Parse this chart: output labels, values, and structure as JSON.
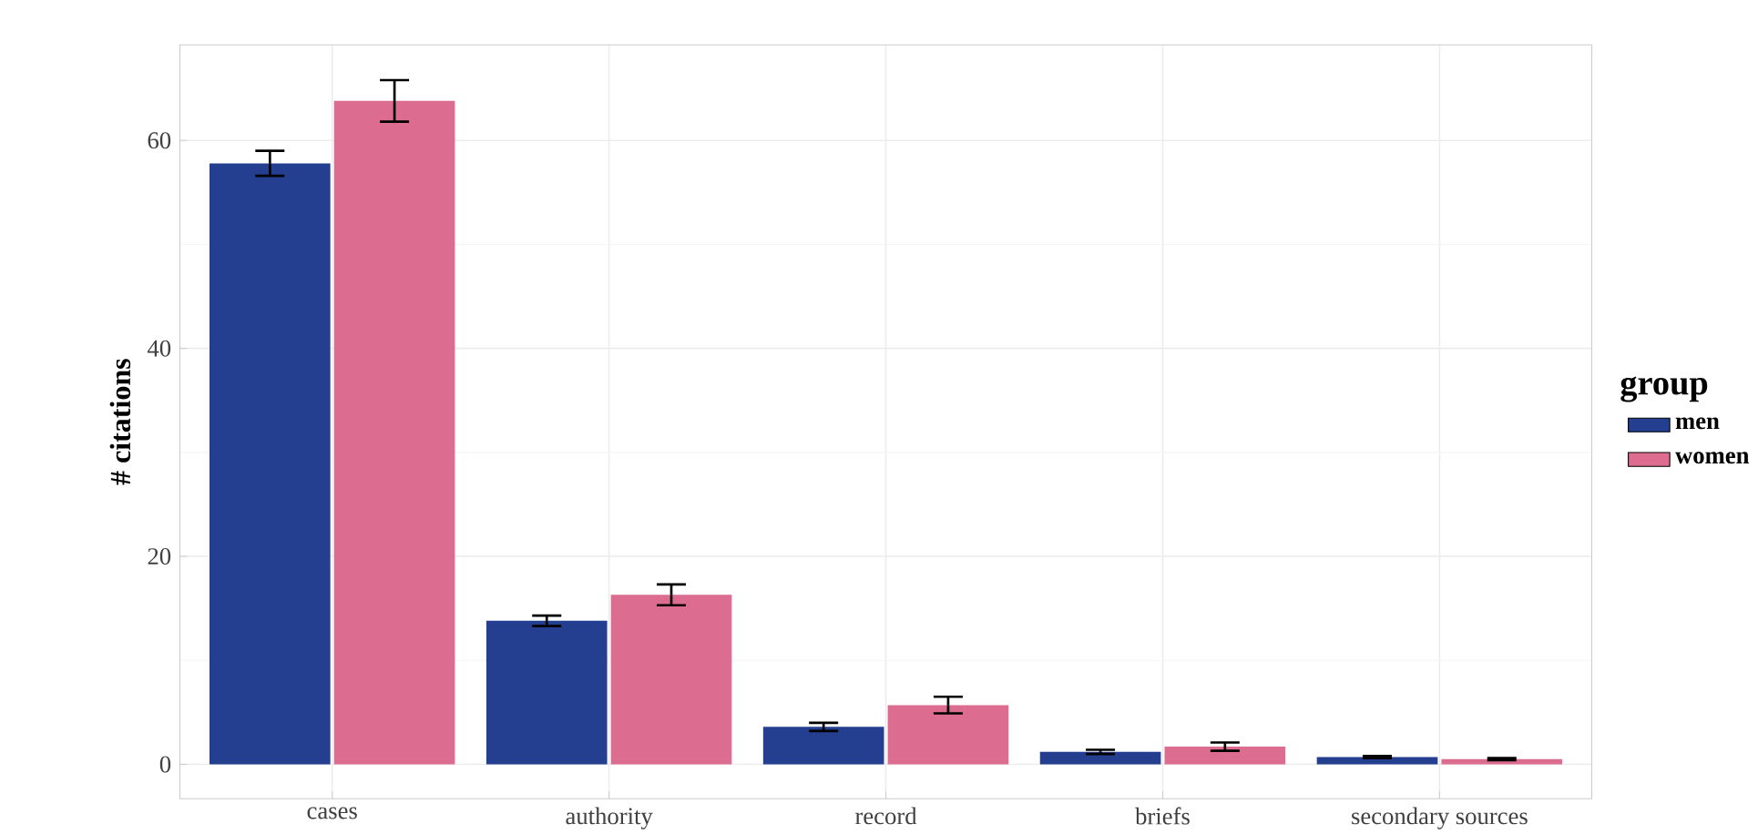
{
  "chart_data": {
    "type": "bar",
    "ylabel": "# citations",
    "legend_title": "group",
    "categories": [
      "cases",
      "authority",
      "record",
      "briefs",
      "secondary sources"
    ],
    "series": [
      {
        "name": "men",
        "color": "#243f8f",
        "values": [
          57.8,
          13.8,
          3.6,
          1.2,
          0.7
        ],
        "errors": [
          1.2,
          0.5,
          0.4,
          0.2,
          0.1
        ]
      },
      {
        "name": "women",
        "color": "#dc6d90",
        "values": [
          63.8,
          16.3,
          5.7,
          1.7,
          0.5
        ],
        "errors": [
          2.0,
          1.0,
          0.8,
          0.4,
          0.1
        ]
      }
    ],
    "ylim": [
      -3.3,
      69.2
    ],
    "yticks": [
      0,
      20,
      40,
      60
    ],
    "grid": true,
    "legend": "right"
  }
}
